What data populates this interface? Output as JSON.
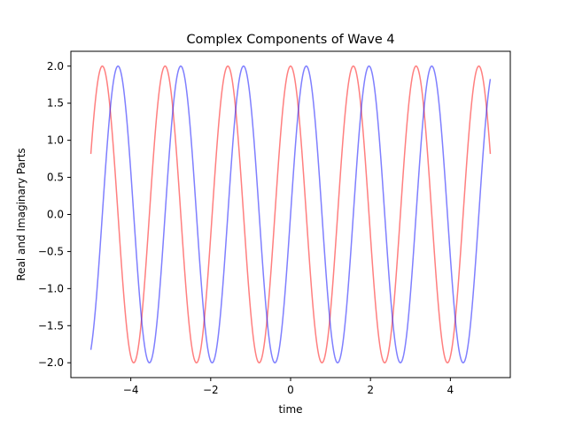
{
  "chart_data": {
    "type": "line",
    "title": "Complex Components of Wave 4",
    "xlabel": "time",
    "ylabel": "Real and Imaginary Parts",
    "xlim": [
      -5.5,
      5.5
    ],
    "ylim": [
      -2.2,
      2.2
    ],
    "xticks": [
      -4,
      -2,
      0,
      2,
      4
    ],
    "xtick_labels": [
      "−4",
      "−2",
      "0",
      "2",
      "4"
    ],
    "yticks": [
      -2.0,
      -1.5,
      -1.0,
      -0.5,
      0.0,
      0.5,
      1.0,
      1.5,
      2.0
    ],
    "ytick_labels": [
      "−2.0",
      "−1.5",
      "−1.0",
      "−0.5",
      "0.0",
      "0.5",
      "1.0",
      "1.5",
      "2.0"
    ],
    "grid": false,
    "legend": "none",
    "series": [
      {
        "color": "#ff0000",
        "alpha": 0.5,
        "function": "2*cos(4*t)",
        "x_range": [
          -5,
          5
        ]
      },
      {
        "color": "#0000ff",
        "alpha": 0.5,
        "function": "2*sin(4*t)",
        "x_range": [
          -5,
          5
        ]
      }
    ]
  }
}
